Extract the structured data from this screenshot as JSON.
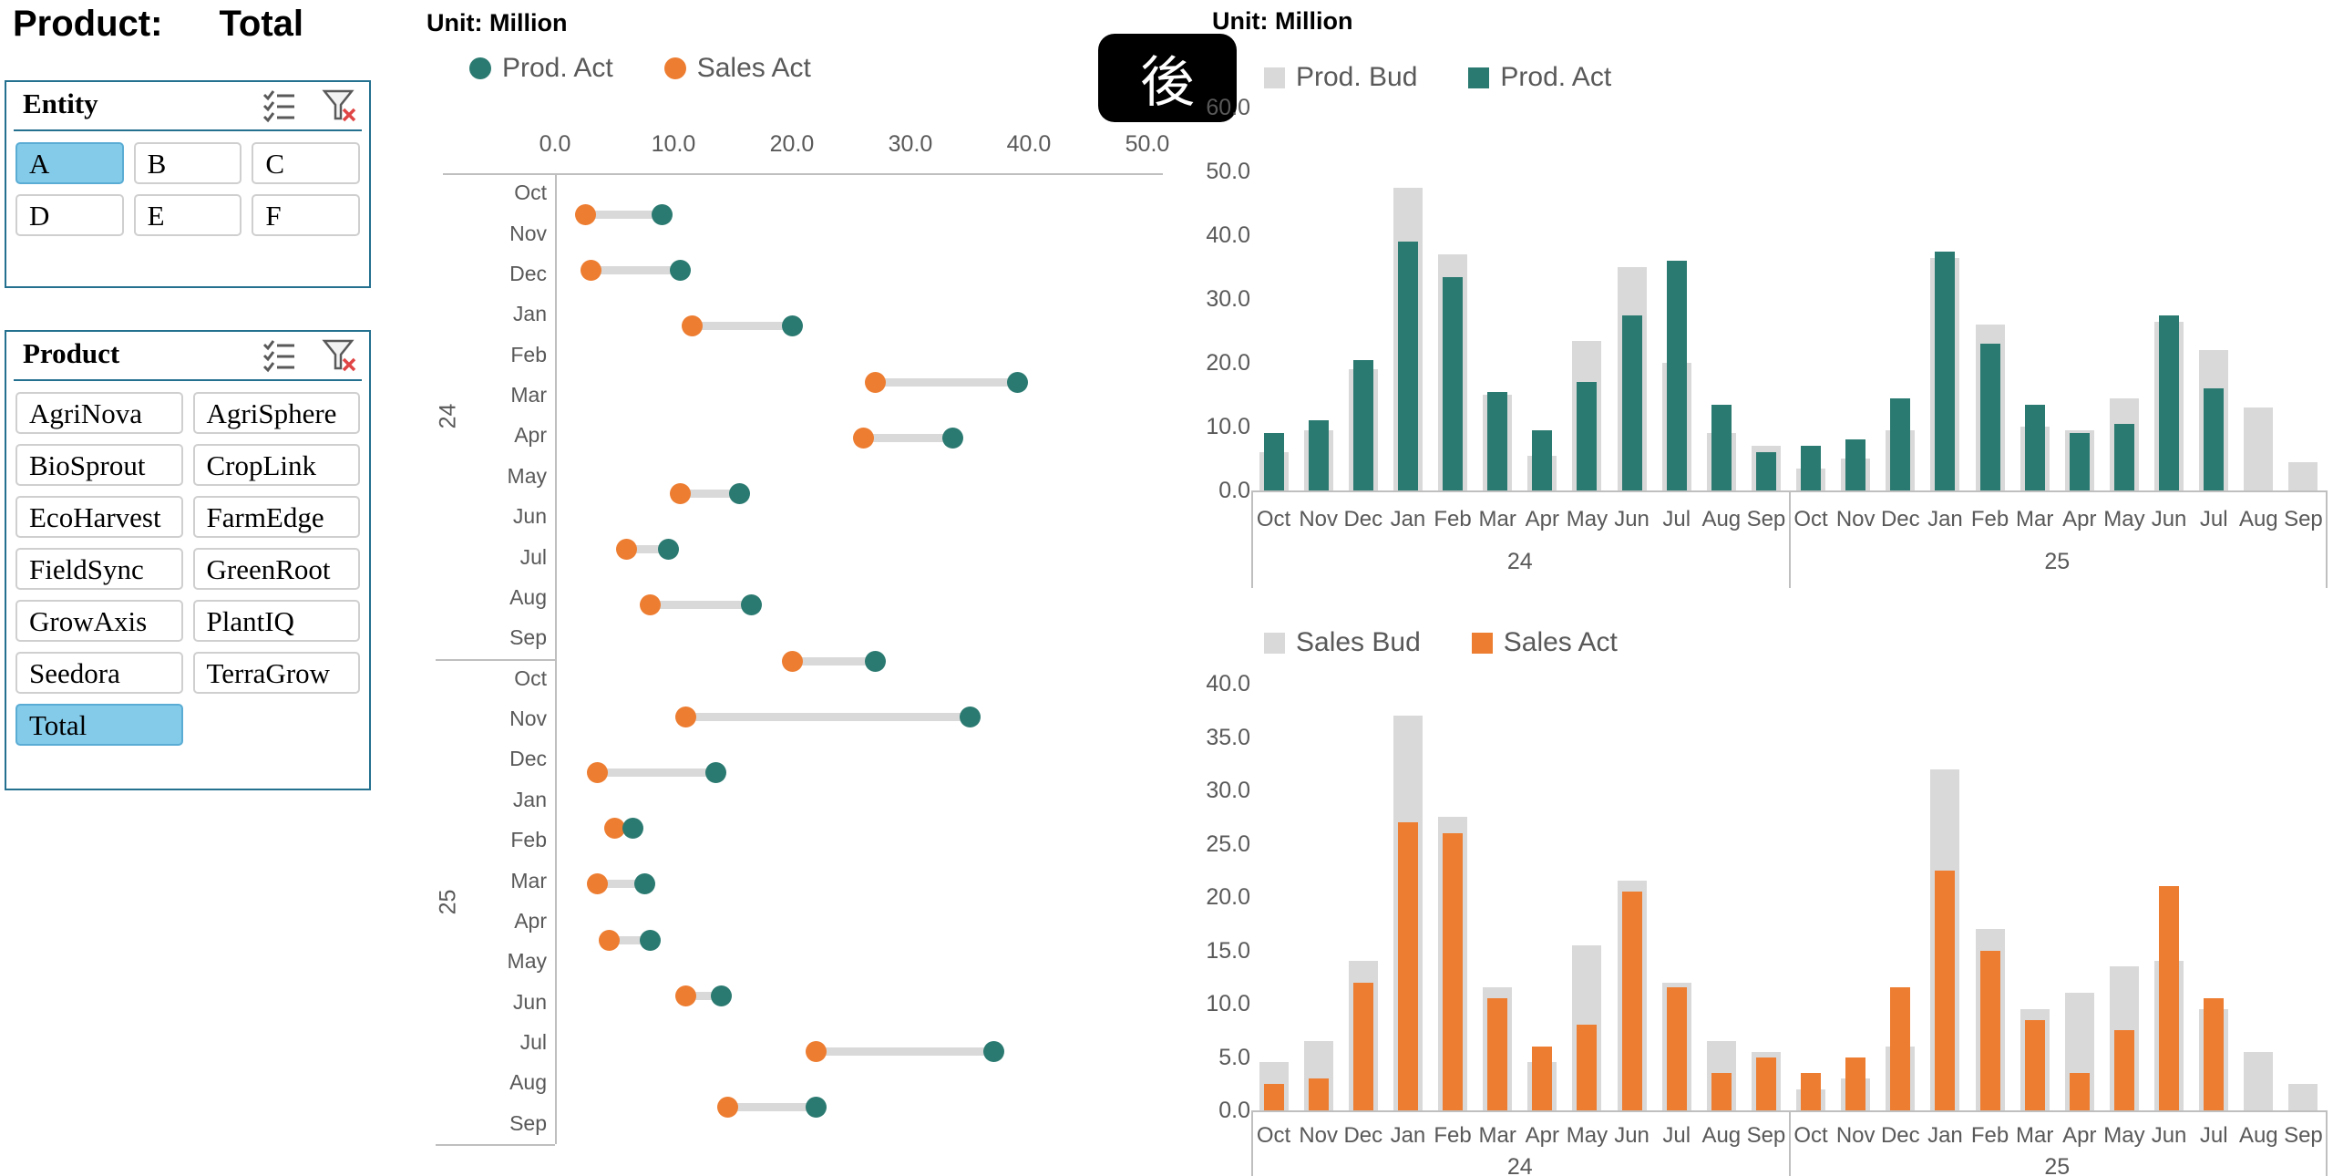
{
  "header": {
    "label": "Product:",
    "value": "Total"
  },
  "badge": {
    "text": "後"
  },
  "colors": {
    "teal": "#2B7A71",
    "orange": "#ED7D31",
    "budget_gray": "#D9D9D9",
    "selected_blue": "#84CBEA",
    "slicer_border": "#24708F",
    "axis_text": "#595959",
    "clear_filter_x_red": "#E04545"
  },
  "slicers": [
    {
      "id": "entity",
      "title": "Entity",
      "icons": [
        "multiselect-icon",
        "clear-filter-icon"
      ],
      "columns": 3,
      "items": [
        {
          "label": "A",
          "selected": true
        },
        {
          "label": "B",
          "selected": false
        },
        {
          "label": "C",
          "selected": false
        },
        {
          "label": "D",
          "selected": false
        },
        {
          "label": "E",
          "selected": false
        },
        {
          "label": "F",
          "selected": false
        }
      ]
    },
    {
      "id": "product",
      "title": "Product",
      "icons": [
        "multiselect-icon",
        "clear-filter-icon"
      ],
      "columns": 2,
      "items": [
        {
          "label": "AgriNova",
          "selected": false
        },
        {
          "label": "AgriSphere",
          "selected": false
        },
        {
          "label": "BioSprout",
          "selected": false
        },
        {
          "label": "CropLink",
          "selected": false
        },
        {
          "label": "EcoHarvest",
          "selected": false
        },
        {
          "label": "FarmEdge",
          "selected": false
        },
        {
          "label": "FieldSync",
          "selected": false
        },
        {
          "label": "GreenRoot",
          "selected": false
        },
        {
          "label": "GrowAxis",
          "selected": false
        },
        {
          "label": "PlantIQ",
          "selected": false
        },
        {
          "label": "Seedora",
          "selected": false
        },
        {
          "label": "TerraGrow",
          "selected": false
        },
        {
          "label": "Total",
          "selected": true
        }
      ]
    }
  ],
  "months": [
    "Oct",
    "Nov",
    "Dec",
    "Jan",
    "Feb",
    "Mar",
    "Apr",
    "May",
    "Jun",
    "Jul",
    "Aug",
    "Sep"
  ],
  "year_groups": [
    "24",
    "25"
  ],
  "chart_data": [
    {
      "type": "scatter",
      "name": "prod-vs-sales-dumbbell",
      "title": "Unit: Million",
      "legend": [
        {
          "label": "Prod. Act",
          "color": "teal",
          "marker": "circle"
        },
        {
          "label": "Sales Act",
          "color": "orange",
          "marker": "circle"
        }
      ],
      "x_axis": {
        "position": "top",
        "min": 0,
        "max": 50,
        "ticks": [
          "0.0",
          "10.0",
          "20.0",
          "30.0",
          "40.0",
          "50.0"
        ]
      },
      "y_axis": {
        "months_repeated_for_years": [
          "24",
          "25"
        ],
        "grid": false
      },
      "points": [
        {
          "sales_act": 2.5,
          "prod_act": 9
        },
        {
          "sales_act": 3,
          "prod_act": 10.5
        },
        {
          "sales_act": 11.5,
          "prod_act": 20
        },
        {
          "sales_act": 27,
          "prod_act": 39
        },
        {
          "sales_act": 26,
          "prod_act": 33.5
        },
        {
          "sales_act": 10.5,
          "prod_act": 15.5
        },
        {
          "sales_act": 6,
          "prod_act": 9.5
        },
        {
          "sales_act": 8,
          "prod_act": 16.5
        },
        {
          "sales_act": 20,
          "prod_act": 27
        },
        {
          "sales_act": 11,
          "prod_act": 35
        },
        {
          "sales_act": 3.5,
          "prod_act": 13.5
        },
        {
          "sales_act": 5,
          "prod_act": 6.5
        },
        {
          "sales_act": 3.5,
          "prod_act": 7.5
        },
        {
          "sales_act": 4.5,
          "prod_act": 8
        },
        {
          "sales_act": 11,
          "prod_act": 14
        },
        {
          "sales_act": 22,
          "prod_act": 37
        },
        {
          "sales_act": 14.5,
          "prod_act": 22
        }
      ]
    },
    {
      "type": "bar",
      "name": "production-budget-vs-actual",
      "title": "Unit: Million",
      "legend": [
        {
          "label": "Prod. Bud",
          "color": "budget_gray",
          "marker": "square"
        },
        {
          "label": "Prod. Act",
          "color": "teal",
          "marker": "square"
        }
      ],
      "y_axis": {
        "min": 0,
        "max": 60,
        "ticks": [
          "60.0",
          "50.0",
          "40.0",
          "30.0",
          "20.0",
          "10.0",
          "0.0"
        ]
      },
      "categories_note": "Oct-Sep repeated for fiscal years 24 and 25",
      "series": [
        {
          "name": "Prod. Bud",
          "values": [
            6,
            9.5,
            19,
            47.5,
            37,
            15,
            5.5,
            23.5,
            35,
            20,
            9,
            7,
            3.5,
            5,
            9.5,
            36.5,
            26,
            10,
            9.5,
            14.5,
            26.5,
            22,
            13,
            4.5
          ]
        },
        {
          "name": "Prod. Act",
          "values": [
            9,
            11,
            20.5,
            39,
            33.5,
            15.5,
            9.5,
            17,
            27.5,
            36,
            13.5,
            6,
            7,
            8,
            14.5,
            37.5,
            23,
            13.5,
            9,
            10.5,
            27.5,
            16,
            null,
            null
          ]
        }
      ]
    },
    {
      "type": "bar",
      "name": "sales-budget-vs-actual",
      "title": "",
      "legend": [
        {
          "label": "Sales Bud",
          "color": "budget_gray",
          "marker": "square"
        },
        {
          "label": "Sales Act",
          "color": "orange",
          "marker": "square"
        }
      ],
      "y_axis": {
        "min": 0,
        "max": 40,
        "ticks": [
          "40.0",
          "35.0",
          "30.0",
          "25.0",
          "20.0",
          "15.0",
          "10.0",
          "5.0",
          "0.0"
        ]
      },
      "categories_note": "Oct-Sep repeated for fiscal years 24 and 25",
      "series": [
        {
          "name": "Sales Bud",
          "values": [
            4.5,
            6.5,
            14,
            37,
            27.5,
            11.5,
            4.5,
            15.5,
            21.5,
            12,
            6.5,
            5.5,
            2,
            3,
            6,
            32,
            17,
            9.5,
            11,
            13.5,
            14,
            9.5,
            5.5,
            2.5
          ]
        },
        {
          "name": "Sales Act",
          "values": [
            2.5,
            3,
            12,
            27,
            26,
            10.5,
            6,
            8,
            20.5,
            11.5,
            3.5,
            5,
            3.5,
            5,
            11.5,
            22.5,
            15,
            8.5,
            3.5,
            7.5,
            21,
            10.5,
            null,
            null
          ]
        }
      ]
    }
  ]
}
